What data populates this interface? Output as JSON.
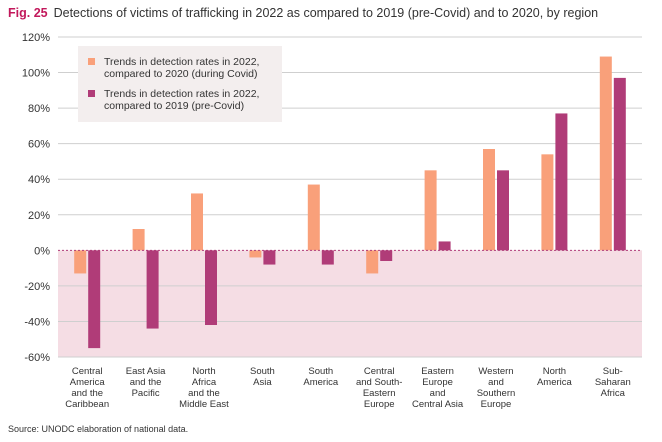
{
  "figure_label": "Fig. 25",
  "title": "Detections of victims of trafficking in 2022 as compared to 2019 (pre-Covid) and to 2020, by region",
  "source": "Source: UNODC elaboration of national data.",
  "colors": {
    "series_2020": "#f9a07a",
    "series_2019": "#b03c78",
    "negative_band": "#f5dde4",
    "gridline": "#cfcfcf",
    "zero_line": "#b03c78",
    "legend_bg": "#f3eeee",
    "figure_label": "#c2185b"
  },
  "chart_data": {
    "type": "bar",
    "categories": [
      [
        "Central",
        "America",
        "and the",
        "Caribbean"
      ],
      [
        "East Asia",
        "and the",
        "Pacific"
      ],
      [
        "North",
        "Africa",
        "and the",
        "Middle East"
      ],
      [
        "South",
        "Asia"
      ],
      [
        "South",
        "America"
      ],
      [
        "Central",
        "and South-",
        "Eastern",
        "Europe"
      ],
      [
        "Eastern",
        "Europe",
        "and",
        "Central Asia"
      ],
      [
        "Western",
        "and",
        "Southern",
        "Europe"
      ],
      [
        "North",
        "America"
      ],
      [
        "Sub-",
        "Saharan",
        "Africa"
      ]
    ],
    "series": [
      {
        "name": [
          "Trends in detection rates in 2022,",
          "compared to 2020 (during Covid)"
        ],
        "color": "#f9a07a",
        "values": [
          -13,
          12,
          32,
          -4,
          37,
          -13,
          45,
          57,
          54,
          109
        ]
      },
      {
        "name": [
          "Trends in detection rates in 2022,",
          "compared to 2019 (pre-Covid)"
        ],
        "color": "#b03c78",
        "values": [
          -55,
          -44,
          -42,
          -8,
          -8,
          -6,
          5,
          45,
          77,
          97
        ]
      }
    ],
    "y_ticks": [
      "120%",
      "100%",
      "80%",
      "60%",
      "40%",
      "20%",
      "0%",
      "-20%",
      "-40%",
      "-60%"
    ],
    "ylim": [
      -60,
      120
    ],
    "grid": true,
    "legend_position": "top-left"
  }
}
